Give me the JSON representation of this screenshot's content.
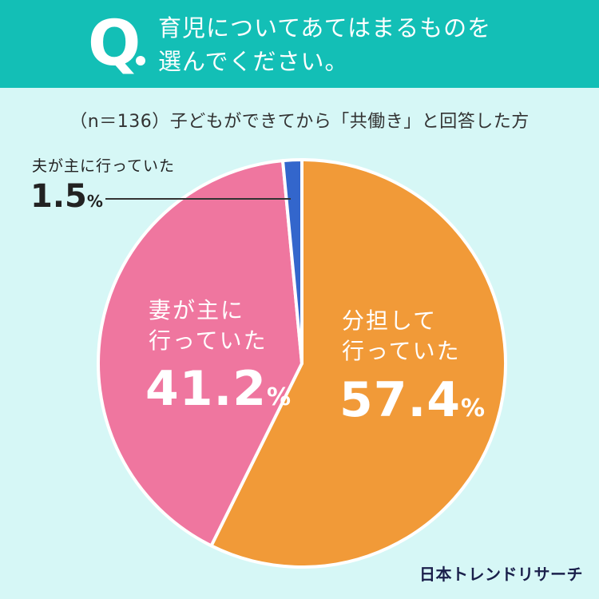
{
  "header": {
    "q_label": "Q",
    "question_line1": "育児についてあてはまるものを",
    "question_line2": "選んでください。"
  },
  "subtitle": "（n＝136）子どもができてから「共働き」と回答した方",
  "chart_data": {
    "type": "pie",
    "title": "育児についてあてはまるものを選んでください。",
    "subtitle": "（n＝136）子どもができてから「共働き」と回答した方",
    "slices": [
      {
        "label": "分担して行っていた",
        "value": 57.4,
        "color": "#f19a38"
      },
      {
        "label": "妻が主に行っていた",
        "value": 41.2,
        "color": "#ef769f"
      },
      {
        "label": "夫が主に行っていた",
        "value": 1.5,
        "color": "#3366cc"
      }
    ],
    "start_angle": "12 o'clock",
    "direction": "clockwise"
  },
  "labels": {
    "shared_line1": "分担して",
    "shared_line2": "行っていた",
    "shared_pct": "57.4",
    "wife_line1": "妻が主に",
    "wife_line2": "行っていた",
    "wife_pct": "41.2",
    "husband_line": "夫が主に行っていた",
    "husband_pct": "1.5",
    "pct_sign": "%"
  },
  "brand": "日本トレンドリサーチ"
}
